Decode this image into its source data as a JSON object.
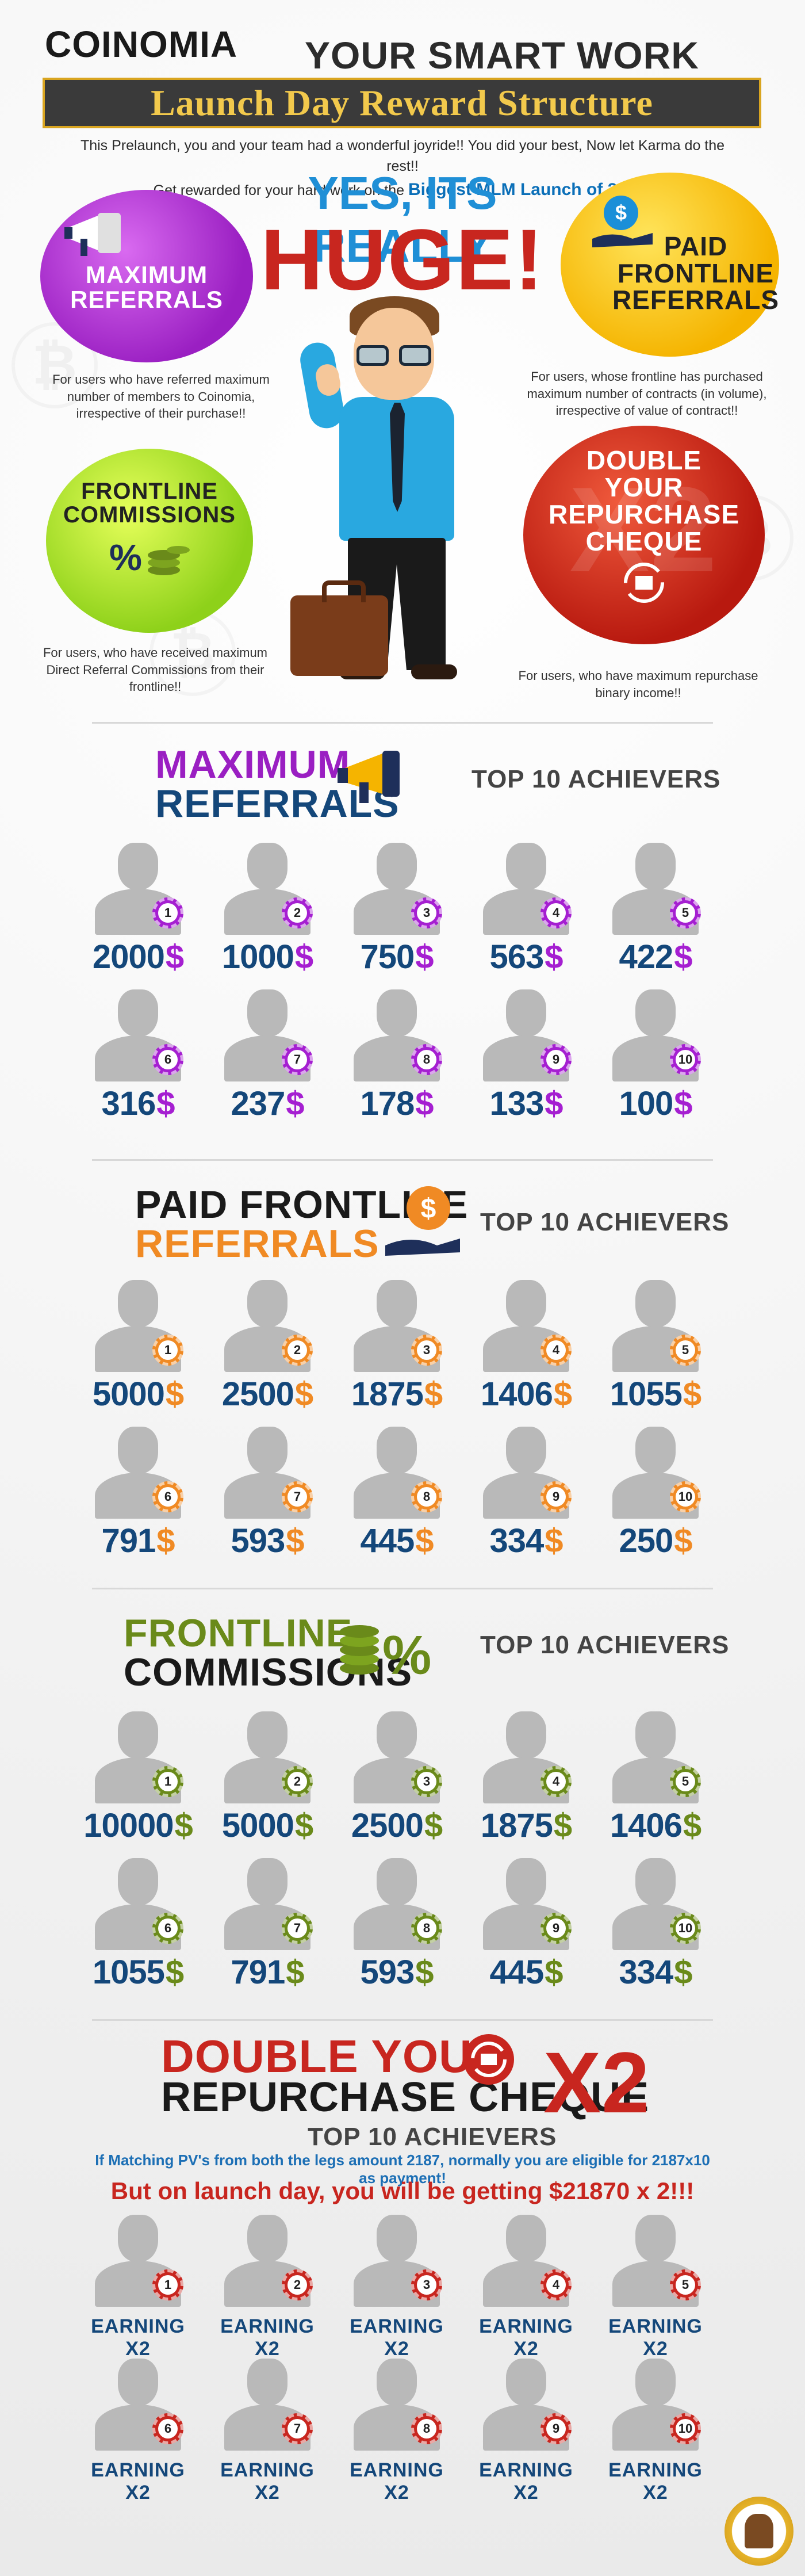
{
  "header": {
    "logo": "COINOMIA",
    "tagline": "YOUR SMART WORK PAYS !!!",
    "banner": "Launch Day Reward Structure",
    "intro_line1": "This Prelaunch, you and your team had a wonderful joyride!! You did your best, Now let Karma do the rest!!",
    "intro_line2_prefix": "Get rewarded for your hard work on the",
    "intro_highlight": "Biggest MLM Launch of 2016!"
  },
  "hero": {
    "title_1": "YES, ITS REALLY",
    "title_2": "HUGE!",
    "bubbles": {
      "max_referrals": {
        "title_1": "MAXIMUM",
        "title_2": "REFERRALS",
        "desc": "For users who have referred maximum number of members to Coinomia, irrespective of their purchase!!"
      },
      "paid_frontline": {
        "title_1": "PAID",
        "title_2": "FRONTLINE",
        "title_3": "REFERRALS",
        "desc": "For users, whose frontline has purchased maximum number of contracts (in volume), irrespective of value of contract!!"
      },
      "frontline_commissions": {
        "title_1": "FRONTLINE",
        "title_2": "COMMISSIONS",
        "desc": "For users, who have received maximum Direct Referral Commissions from their frontline!!"
      },
      "double_cheque": {
        "title_1": "DOUBLE",
        "title_2": "YOUR",
        "title_3": "REPURCHASE",
        "title_4": "CHEQUE",
        "desc": "For users, who have maximum repurchase binary income!!"
      }
    }
  },
  "top10_label": "TOP 10 ACHIEVERS",
  "sections": [
    {
      "title_1": "MAXIMUM",
      "title_2": "REFERRALS",
      "color_1": "#9a1fc2",
      "color_2": "#14477a",
      "accent": "#a51fd1",
      "currency": "$",
      "amounts": [
        "2000",
        "1000",
        "750",
        "563",
        "422",
        "316",
        "237",
        "178",
        "133",
        "100"
      ]
    },
    {
      "title_1": "PAID FRONTLINE",
      "title_2": "REFERRALS",
      "color_1": "#1a1a1a",
      "color_2": "#f08a24",
      "accent": "#f08a24",
      "currency": "$",
      "amounts": [
        "5000",
        "2500",
        "1875",
        "1406",
        "1055",
        "791",
        "593",
        "445",
        "334",
        "250"
      ]
    },
    {
      "title_1": "FRONTLINE",
      "title_2": "COMMISSIONS",
      "color_1": "#6a8a1a",
      "color_2": "#1a1a1a",
      "accent": "#6a8a1a",
      "currency": "$",
      "amounts": [
        "10000",
        "5000",
        "2500",
        "1875",
        "1406",
        "1055",
        "791",
        "593",
        "445",
        "334"
      ]
    },
    {
      "title_1": "DOUBLE YOUR",
      "title_2": "REPURCHASE CHEQUE",
      "title_x2": "X2",
      "color_1": "#c8261f",
      "color_2": "#1a1a1a",
      "accent": "#c8261f",
      "note_1": "If Matching PV's from both the legs amount 2187, normally you are eligible for 2187x10 as payment!",
      "note_2": "But on launch day, you will be getting $21870 x 2!!!",
      "earning_label": "EARNING X2"
    }
  ],
  "ranks": [
    "1",
    "2",
    "3",
    "4",
    "5",
    "6",
    "7",
    "8",
    "9",
    "10"
  ]
}
